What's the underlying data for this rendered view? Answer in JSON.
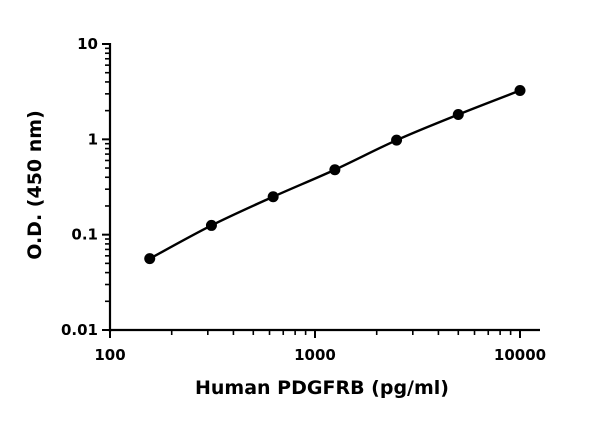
{
  "chart_data": {
    "type": "scatter",
    "title": "",
    "xlabel": "Human PDGFRB (pg/ml)",
    "ylabel": "O.D. (450 nm)",
    "x_scale": "log",
    "y_scale": "log",
    "xlim": [
      100,
      10000
    ],
    "ylim": [
      0.01,
      10
    ],
    "x_ticks": [
      "100",
      "1000",
      "10000"
    ],
    "y_ticks": [
      "0.01",
      "0.1",
      "1",
      "10"
    ],
    "grid": false,
    "legend": "none",
    "series": [
      {
        "x": [
          156.25,
          312.5,
          625,
          1250,
          2500,
          5000,
          10000
        ],
        "y": [
          0.056,
          0.125,
          0.25,
          0.48,
          0.98,
          1.82,
          3.25
        ],
        "marker": "circle",
        "color": "#000000",
        "fit_line": true
      }
    ]
  }
}
